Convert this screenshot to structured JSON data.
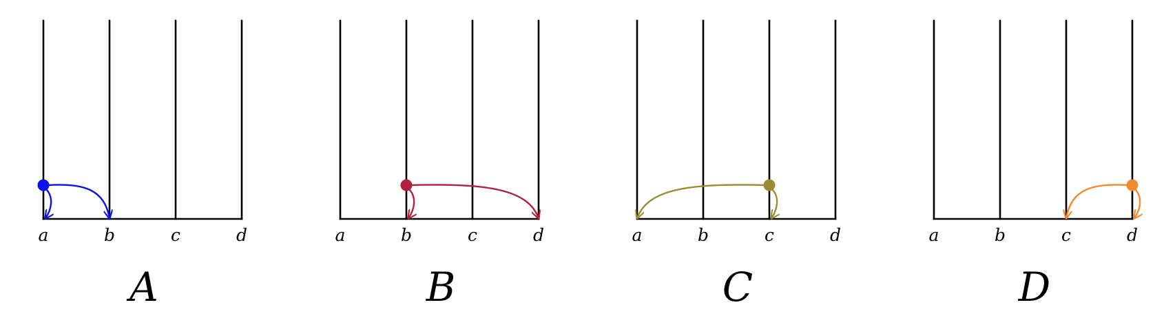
{
  "panels": [
    {
      "id": "A",
      "title": "A",
      "color": "#0a12ee",
      "labels": [
        "a",
        "b",
        "c",
        "d"
      ],
      "dot_at": "a",
      "arrows": [
        {
          "from": "a",
          "to": "a"
        },
        {
          "from": "a",
          "to": "b"
        }
      ]
    },
    {
      "id": "B",
      "title": "B",
      "color": "#b0213f",
      "labels": [
        "a",
        "b",
        "c",
        "d"
      ],
      "dot_at": "b",
      "arrows": [
        {
          "from": "b",
          "to": "b"
        },
        {
          "from": "b",
          "to": "d"
        }
      ]
    },
    {
      "id": "C",
      "title": "C",
      "color": "#9a8c35",
      "labels": [
        "a",
        "b",
        "c",
        "d"
      ],
      "dot_at": "c",
      "arrows": [
        {
          "from": "c",
          "to": "c"
        },
        {
          "from": "c",
          "to": "a"
        }
      ]
    },
    {
      "id": "D",
      "title": "D",
      "color": "#f28a32",
      "labels": [
        "a",
        "b",
        "c",
        "d"
      ],
      "dot_at": "d",
      "arrows": [
        {
          "from": "d",
          "to": "d"
        },
        {
          "from": "d",
          "to": "c"
        }
      ]
    }
  ]
}
